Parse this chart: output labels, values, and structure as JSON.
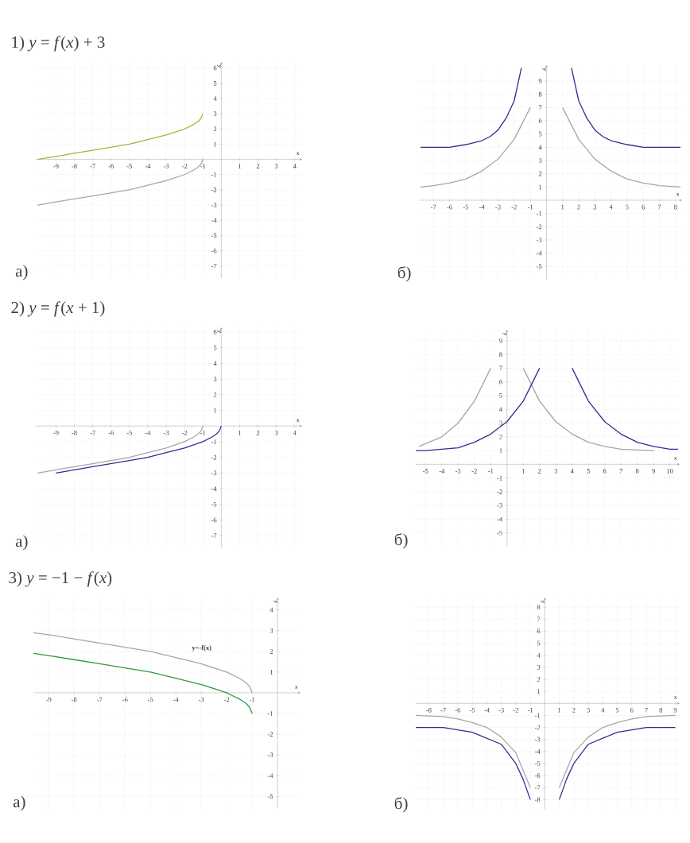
{
  "chart_data": [
    {
      "type": "line",
      "title": "1) *y* = *f*(*x*) + 3",
      "xlabel": "x",
      "ylabel": "y",
      "xlim": [
        -10.1,
        4.4
      ],
      "ylim": [
        -7.8,
        6.4
      ],
      "xticks": [
        -9,
        -8,
        -7,
        -6,
        -5,
        -4,
        -3,
        -2,
        -1,
        1,
        2,
        3,
        4
      ],
      "yticks": [
        -7,
        -6,
        -5,
        -4,
        -3,
        -2,
        -1,
        1,
        2,
        3,
        4,
        5,
        6
      ],
      "grid": true,
      "annotations": [
        "а)"
      ],
      "series": [
        {
          "color": "#a6a6a6",
          "x": [
            -10,
            -9,
            -8,
            -7,
            -6,
            -5,
            -4,
            -3,
            -2,
            -1.5,
            -1.25,
            -1.1,
            -1
          ],
          "values": [
            -3,
            -2.8,
            -2.6,
            -2.4,
            -2.2,
            -2,
            -1.7,
            -1.4,
            -1,
            -0.7,
            -0.5,
            -0.3,
            0
          ]
        },
        {
          "color": "#a4b43c",
          "x": [
            -10,
            -9,
            -8,
            -7,
            -6,
            -5,
            -4,
            -3,
            -2,
            -1.5,
            -1.25,
            -1.1,
            -1
          ],
          "values": [
            0,
            0.2,
            0.4,
            0.6,
            0.8,
            1,
            1.3,
            1.6,
            2,
            2.3,
            2.5,
            2.7,
            3
          ]
        }
      ]
    },
    {
      "type": "line",
      "xlabel": "x",
      "ylabel": "y",
      "xlim": [
        -7.9,
        8.4
      ],
      "ylim": [
        -6,
        10.2
      ],
      "xticks": [
        -7,
        -6,
        -5,
        -4,
        -3,
        -2,
        -1,
        1,
        2,
        3,
        4,
        5,
        6,
        7,
        8
      ],
      "yticks": [
        -5,
        -4,
        -3,
        -2,
        -1,
        1,
        2,
        3,
        4,
        5,
        6,
        7,
        8,
        9
      ],
      "grid": true,
      "annotations": [
        "б)"
      ],
      "series": [
        {
          "color": "#a6a6a6",
          "x": [
            -7.8,
            -7,
            -6,
            -5,
            -4,
            -3,
            -2,
            -1.5,
            -1,
            0,
            1,
            1.5,
            2,
            3,
            4,
            5,
            6,
            7,
            8.3
          ],
          "values": [
            1,
            1.1,
            1.3,
            1.6,
            2.2,
            3.1,
            4.6,
            5.8,
            7,
            null,
            7,
            5.8,
            4.6,
            3.1,
            2.2,
            1.6,
            1.3,
            1.1,
            1
          ]
        },
        {
          "color": "#2e2e8f",
          "x": [
            -7.8,
            -7,
            -6,
            -5,
            -4,
            -3.5,
            -3,
            -2.5,
            -2,
            -1.55,
            0,
            1.55,
            2,
            2.5,
            3,
            3.5,
            4,
            5,
            6,
            7,
            8.3
          ],
          "values": [
            4,
            4,
            4,
            4.2,
            4.5,
            4.8,
            5.3,
            6.2,
            7.5,
            10,
            null,
            10,
            7.5,
            6.2,
            5.3,
            4.8,
            4.5,
            4.2,
            4,
            4,
            4
          ]
        }
      ]
    },
    {
      "type": "line",
      "title": "2) *y* = *f*(*x* + 1)",
      "xlabel": "x",
      "ylabel": "y",
      "xlim": [
        -10.1,
        4.4
      ],
      "ylim": [
        -7.8,
        6.3
      ],
      "xticks": [
        -9,
        -8,
        -7,
        -6,
        -5,
        -4,
        -3,
        -2,
        -1,
        1,
        2,
        3,
        4
      ],
      "yticks": [
        -7,
        -6,
        -5,
        -4,
        -3,
        -2,
        -1,
        1,
        2,
        3,
        4,
        5,
        6
      ],
      "grid": true,
      "annotations": [
        "а)"
      ],
      "series": [
        {
          "color": "#a6a6a6",
          "x": [
            -10,
            -9,
            -8,
            -7,
            -6,
            -5,
            -4,
            -3,
            -2,
            -1.5,
            -1.25,
            -1.1,
            -1
          ],
          "values": [
            -3,
            -2.8,
            -2.6,
            -2.4,
            -2.2,
            -2,
            -1.7,
            -1.4,
            -1,
            -0.7,
            -0.5,
            -0.3,
            0
          ]
        },
        {
          "color": "#2e2e8f",
          "x": [
            -9,
            -8,
            -7,
            -6,
            -5,
            -4,
            -3,
            -2,
            -1,
            -0.5,
            -0.25,
            -0.1,
            0
          ],
          "values": [
            -3,
            -2.8,
            -2.6,
            -2.4,
            -2.2,
            -2,
            -1.7,
            -1.4,
            -1,
            -0.7,
            -0.5,
            -0.3,
            0
          ]
        }
      ]
    },
    {
      "type": "line",
      "xlabel": "x",
      "ylabel": "y",
      "xlim": [
        -5.6,
        10.6
      ],
      "ylim": [
        -6,
        9.8
      ],
      "xticks": [
        -5,
        -4,
        -3,
        -2,
        -1,
        1,
        2,
        3,
        4,
        5,
        6,
        7,
        8,
        9,
        10
      ],
      "yticks": [
        -5,
        -4,
        -3,
        -2,
        -1,
        1,
        2,
        3,
        4,
        5,
        6,
        7,
        8,
        9
      ],
      "grid": true,
      "annotations": [
        "б)"
      ],
      "series": [
        {
          "color": "#a6a6a6",
          "x": [
            -5.4,
            -5,
            -4,
            -3,
            -2,
            -1.5,
            -1,
            0,
            1,
            1.5,
            2,
            3,
            4,
            5,
            6,
            7,
            9
          ],
          "values": [
            1.3,
            1.5,
            2,
            3,
            4.6,
            5.8,
            7,
            null,
            7,
            5.8,
            4.6,
            3.1,
            2.2,
            1.6,
            1.3,
            1.1,
            1
          ]
        },
        {
          "color": "#2e2e8f",
          "x": [
            -5.6,
            -5,
            -4,
            -3,
            -2,
            -1,
            0,
            1,
            1.5,
            2,
            3,
            4,
            4.5,
            5,
            6,
            7,
            8,
            9,
            10,
            10.5
          ],
          "values": [
            1,
            1,
            1.1,
            1.2,
            1.6,
            2.2,
            3.1,
            4.6,
            5.8,
            7,
            null,
            7,
            5.8,
            4.6,
            3.1,
            2.2,
            1.6,
            1.3,
            1.1,
            1.1
          ]
        }
      ]
    },
    {
      "type": "line",
      "title": "3) *y* = −1 − *f*(*x*)",
      "xlabel": "x",
      "ylabel": "y",
      "xlim": [
        -9.6,
        0.9
      ],
      "ylim": [
        -5.6,
        4.6
      ],
      "xticks": [
        -9,
        -8,
        -7,
        -6,
        -5,
        -4,
        -3,
        -2,
        -1
      ],
      "yticks": [
        -5,
        -4,
        -3,
        -2,
        -1,
        1,
        2,
        3,
        4
      ],
      "grid": true,
      "annotations": [
        "а)",
        "y=-f(x)"
      ],
      "series": [
        {
          "color": "#a6a6a6",
          "x": [
            -9.6,
            -9,
            -8,
            -7,
            -6,
            -5,
            -4,
            -3,
            -2,
            -1.5,
            -1.25,
            -1.1,
            -1
          ],
          "values": [
            2.9,
            2.8,
            2.6,
            2.4,
            2.2,
            2,
            1.7,
            1.4,
            1,
            0.7,
            0.5,
            0.3,
            0
          ]
        },
        {
          "color": "#2e9a3e",
          "x": [
            -9.6,
            -9,
            -8,
            -7,
            -6,
            -5,
            -4,
            -3,
            -2,
            -1.5,
            -1.25,
            -1.1,
            -1
          ],
          "values": [
            1.9,
            1.8,
            1.6,
            1.4,
            1.2,
            1,
            0.7,
            0.4,
            0,
            -0.3,
            -0.5,
            -0.7,
            -1
          ]
        }
      ]
    },
    {
      "type": "line",
      "xlabel": "x",
      "ylabel": "y",
      "xlim": [
        -8.9,
        9.3
      ],
      "ylim": [
        -8.9,
        8.8
      ],
      "xticks": [
        -8,
        -7,
        -6,
        -5,
        -4,
        -3,
        -2,
        -1,
        1,
        2,
        3,
        4,
        5,
        6,
        7,
        8,
        9
      ],
      "yticks": [
        -8,
        -7,
        -6,
        -5,
        -4,
        -3,
        -2,
        -1,
        1,
        2,
        3,
        4,
        5,
        6,
        7,
        8
      ],
      "grid": true,
      "annotations": [
        "б)"
      ],
      "series": [
        {
          "color": "#a6a6a6",
          "x": [
            -8.9,
            -7,
            -6,
            -5,
            -4,
            -3,
            -2,
            -1,
            0,
            1,
            2,
            3,
            4,
            5,
            6,
            7,
            9
          ],
          "values": [
            -1,
            -1.1,
            -1.3,
            -1.6,
            -2,
            -2.8,
            -4.1,
            -7,
            null,
            -7,
            -4.1,
            -2.8,
            -2,
            -1.6,
            -1.3,
            -1.1,
            -1
          ]
        },
        {
          "color": "#2e2e8f",
          "x": [
            -8.9,
            -7,
            -6,
            -5,
            -4,
            -3,
            -2,
            -1.5,
            -1,
            0,
            1,
            1.5,
            2,
            3,
            4,
            5,
            6,
            7,
            9
          ],
          "values": [
            -2,
            -2,
            -2.2,
            -2.4,
            -2.9,
            -3.4,
            -5,
            -6.3,
            -8,
            null,
            -8,
            -6.3,
            -5,
            -3.4,
            -2.9,
            -2.4,
            -2.2,
            -2,
            -2
          ]
        }
      ]
    }
  ]
}
